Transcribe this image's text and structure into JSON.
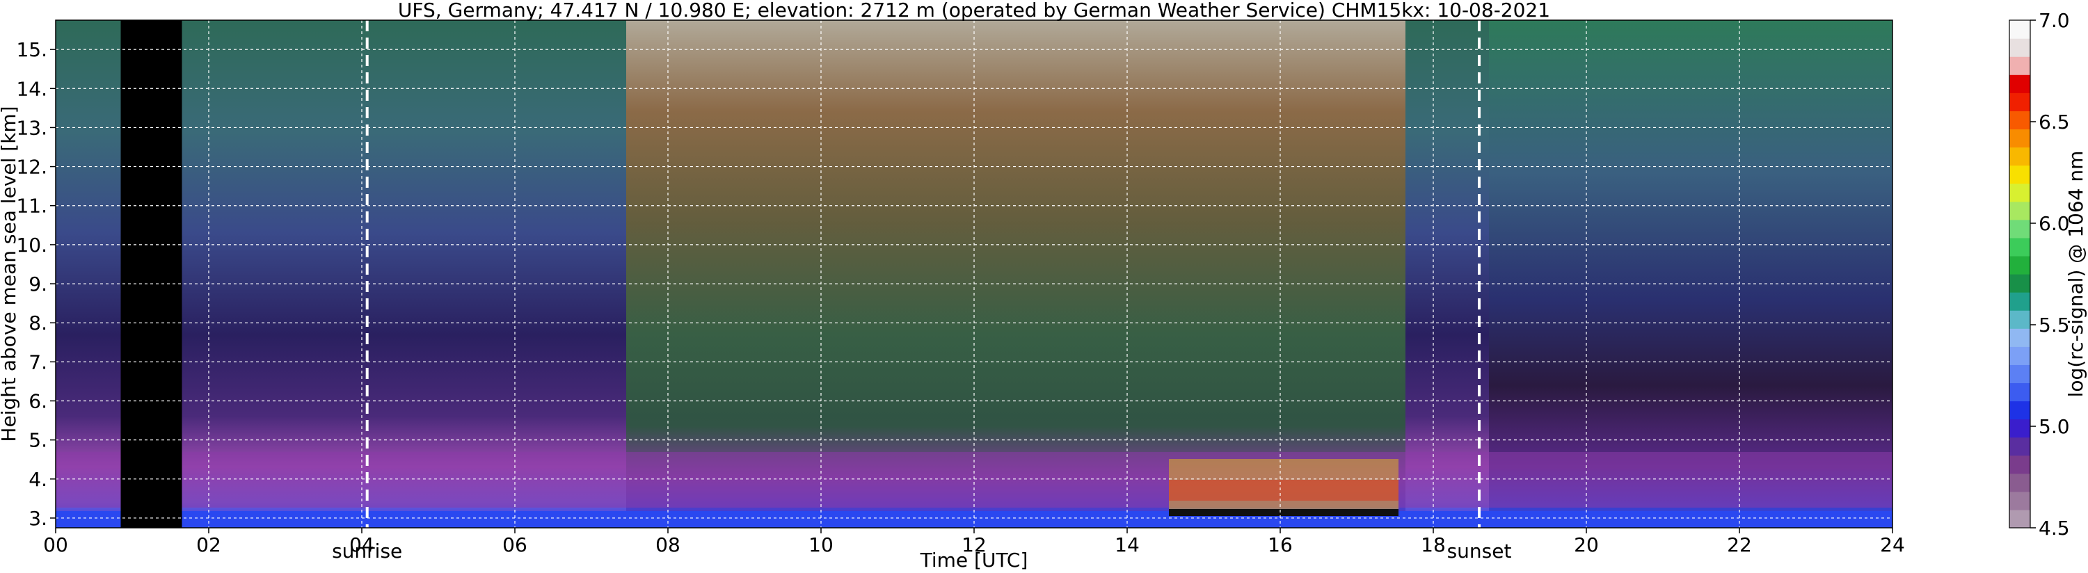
{
  "chart_data": {
    "type": "heatmap",
    "title": "UFS, Germany; 47.417 N / 10.980 E; elevation: 2712 m  (operated by German Weather Service)    CHM15kx: 10-08-2021",
    "xlabel": "Time [UTC]",
    "ylabel": "Height above mean sea level [km]",
    "xlim": [
      0,
      24
    ],
    "ylim": [
      2.75,
      15.75
    ],
    "x_ticks": [
      0,
      2,
      4,
      6,
      8,
      10,
      12,
      14,
      16,
      18,
      20,
      22,
      24
    ],
    "x_tick_labels": [
      "00",
      "02",
      "04",
      "06",
      "08",
      "10",
      "12",
      "14",
      "16",
      "18",
      "20",
      "22",
      "24"
    ],
    "y_ticks": [
      3,
      4,
      5,
      6,
      7,
      8,
      9,
      10,
      11,
      12,
      13,
      14,
      15
    ],
    "y_tick_labels": [
      "3.",
      "4.",
      "5.",
      "6.",
      "7.",
      "8.",
      "9.",
      "10.",
      "11.",
      "12.",
      "13.",
      "14.",
      "15."
    ],
    "grid": true,
    "annotations": [
      {
        "label": "sunrise",
        "x": 4.07
      },
      {
        "label": "sunset",
        "x": 18.6
      }
    ],
    "no_data_intervals": [
      [
        0.85,
        1.65
      ]
    ],
    "colorbar": {
      "label": "log(rc-signal) @ 1064 nm",
      "range": [
        4.5,
        7.0
      ],
      "ticks": [
        4.5,
        5.0,
        5.5,
        6.0,
        6.5,
        7.0
      ],
      "tick_labels": [
        "4.5",
        "5.0",
        "5.5",
        "6.0",
        "6.5",
        "7.0"
      ],
      "colors": [
        "#b09ab0",
        "#9c7a9e",
        "#8a5c90",
        "#7a3c8c",
        "#5a2ea0",
        "#3a1ecc",
        "#1e32e6",
        "#3c5cf0",
        "#5c80f4",
        "#7ca0f6",
        "#90b8f2",
        "#5cb8c8",
        "#20a08c",
        "#189048",
        "#22b03c",
        "#3ccc5a",
        "#70dc78",
        "#a8e860",
        "#d8f030",
        "#f8e000",
        "#f8b800",
        "#f88c00",
        "#f85a00",
        "#f02000",
        "#e00000",
        "#f0b0b0",
        "#e8e0e0",
        "#f8f8f8"
      ]
    }
  }
}
